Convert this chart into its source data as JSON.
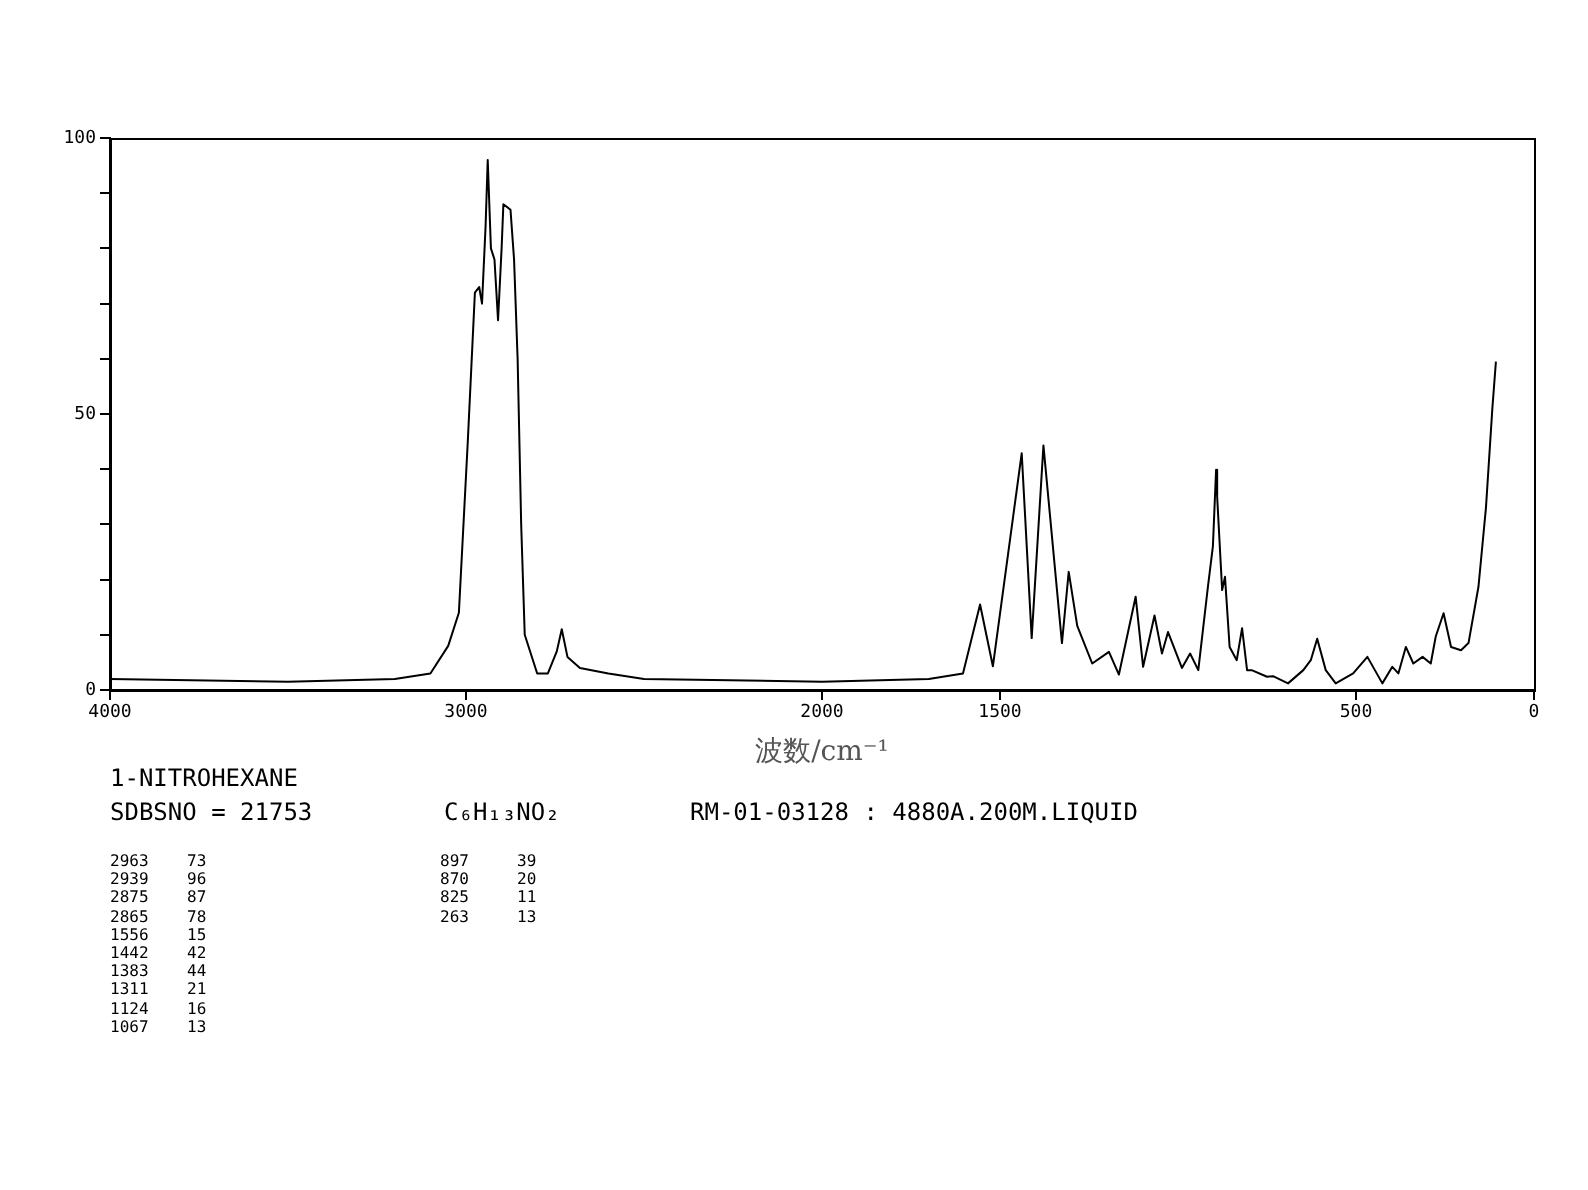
{
  "chart_data": {
    "type": "line",
    "title": "1-NITROHEXANE",
    "xlabel": "波数/cm⁻¹",
    "annotations": [
      "SDBSNO = 21753",
      "C₆H₁₃NO₂",
      "RM-01-03128 : 4880A.200M.LIQUID",
      "2963 73",
      "2939 96",
      "2875 87",
      "2865 78",
      "1556 15",
      "1442 42",
      "1383 44",
      "1311 21",
      "1124 16",
      "1067 13",
      "897 39",
      "870 20",
      "825 11",
      "263 13"
    ],
    "xlim": [
      4000,
      0
    ],
    "xticks": [
      4000,
      3000,
      2000,
      1500,
      500,
      0
    ],
    "ylim": [
      0,
      100
    ],
    "yticks": [
      0,
      {
        "value": 10,
        "label": null
      },
      {
        "value": 20,
        "label": null
      },
      {
        "value": 30,
        "label": null
      },
      {
        "value": 40,
        "label": null
      },
      50,
      {
        "value": 60,
        "label": null
      },
      {
        "value": 70,
        "label": null
      },
      {
        "value": 80,
        "label": null
      },
      {
        "value": 90,
        "label": null
      },
      100
    ],
    "grid": false,
    "legend": false,
    "marker": "none",
    "line_style": "solid",
    "series": [
      {
        "color": "#000000",
        "x": [
          4000,
          3500,
          3200,
          3100,
          3050,
          3020,
          2995,
          2975,
          2963,
          2955,
          2945,
          2939,
          2930,
          2920,
          2910,
          2900,
          2895,
          2875,
          2865,
          2855,
          2845,
          2835,
          2800,
          2770,
          2745,
          2731,
          2715,
          2680,
          2600,
          2500,
          2000,
          1700,
          1604,
          1556,
          1520,
          1439,
          1411,
          1378,
          1326,
          1307,
          1283,
          1241,
          1194,
          1166,
          1119,
          1098,
          1066,
          1045,
          1028,
          989,
          966,
          943,
          916,
          902,
          893,
          890,
          876,
          868,
          855,
          835,
          820,
          806,
          793,
          750,
          733,
          691,
          648,
          627,
          609,
          585,
          557,
          508,
          468,
          426,
          398,
          381,
          360,
          339,
          313,
          290,
          276,
          254,
          233,
          205,
          184,
          156,
          135,
          117,
          107
        ],
        "values": [
          2,
          1.5,
          2,
          3,
          8,
          14,
          45,
          72,
          73,
          70,
          84,
          96,
          80,
          78,
          67,
          80,
          88,
          87,
          78,
          60,
          30,
          10,
          3,
          3,
          7,
          11,
          6,
          4,
          3,
          2,
          1.5,
          2,
          3,
          15.5,
          4.3,
          42.9,
          9.4,
          44.3,
          8.5,
          21.4,
          11.6,
          4.8,
          6.9,
          2.8,
          16.9,
          4.2,
          13.5,
          6.6,
          10.5,
          4,
          6.6,
          3.6,
          18.7,
          26,
          39.9,
          35,
          18.1,
          20.5,
          7.8,
          5.4,
          11.2,
          3.6,
          3.6,
          2.4,
          2.5,
          1.2,
          3.6,
          5.4,
          9.3,
          3.6,
          1.2,
          3,
          6,
          1.2,
          4.2,
          3,
          7.8,
          4.8,
          6,
          4.8,
          9.7,
          13.9,
          7.8,
          7.2,
          8.5,
          18.7,
          33,
          51,
          59.5
        ]
      }
    ]
  }
}
